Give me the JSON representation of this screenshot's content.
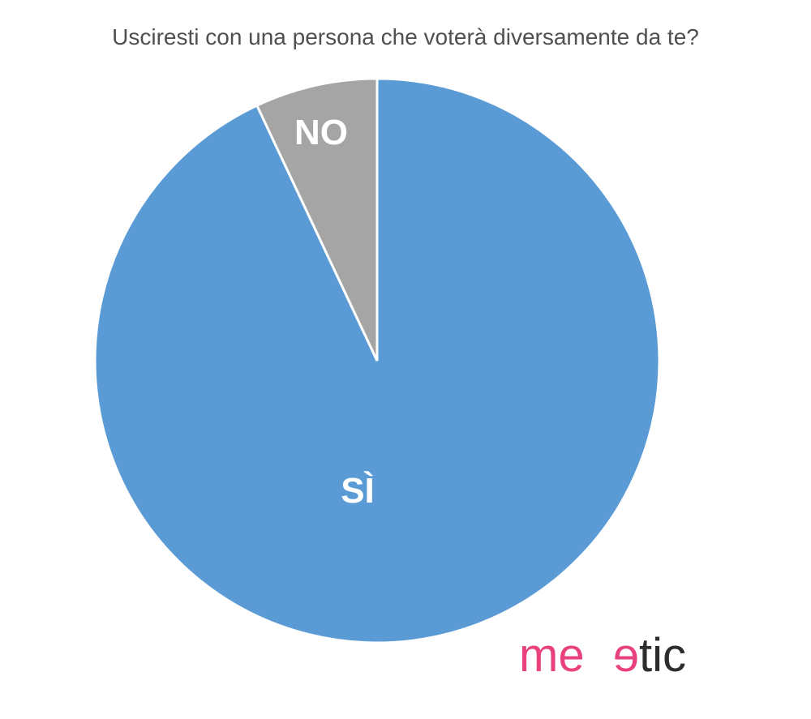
{
  "chart_data": {
    "type": "pie",
    "title": "Usciresti con una persona che voterà diversamente da te?",
    "slices": [
      {
        "label": "SÌ",
        "value": 93,
        "color": "#5b9bd5"
      },
      {
        "label": "NO",
        "value": 7,
        "color": "#a5a5a5"
      }
    ],
    "start_angle_deg": 0,
    "direction": "clockwise",
    "border_color": "#ffffff"
  },
  "logo": {
    "text": "meetic",
    "color_pink": "#e8417e",
    "color_dark": "#2d2d2d"
  }
}
